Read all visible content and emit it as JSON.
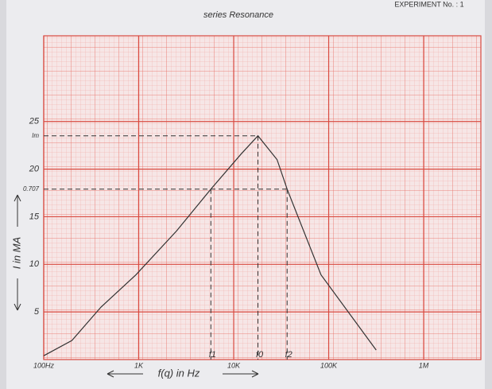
{
  "header": "EXPERIMENT No. : 1",
  "chart_data": {
    "type": "line",
    "title": "series Resonance",
    "x_label": "f(q) in Hz",
    "y_label": "I in MA",
    "x": [
      100,
      198,
      400,
      935,
      2500,
      5750,
      12000,
      18000,
      28600,
      36500,
      83000,
      316000
    ],
    "series": [
      {
        "name": "I",
        "color": "#333333",
        "values": [
          0.4,
          2,
          5.5,
          8.9,
          13.5,
          17.9,
          21.6,
          23.5,
          21,
          17.9,
          8.9,
          1
        ]
      }
    ],
    "log_x": true,
    "xlim": [
      100,
      4000000
    ],
    "xticks": [
      {
        "value": 100,
        "label": "100Hz"
      },
      {
        "value": 1000,
        "label": "1K"
      },
      {
        "value": 10000,
        "label": "10K"
      },
      {
        "value": 100000,
        "label": "100K"
      },
      {
        "value": 1000000,
        "label": "1M"
      }
    ],
    "ylim": [
      0,
      34
    ],
    "yticks": [
      5,
      10,
      15,
      20,
      25
    ],
    "reference_levels": [
      {
        "label": "Im",
        "y": 23.5,
        "x_end": 18000
      },
      {
        "label": "0.707",
        "y": 17.9,
        "x_end": 36500
      }
    ],
    "frequency_markers": [
      {
        "label": "f1",
        "x": 5750,
        "y_top": 17.9
      },
      {
        "label": "f0",
        "x": 18000,
        "y_top": 23.5
      },
      {
        "label": "f2",
        "x": 36500,
        "y_top": 17.9
      }
    ],
    "grid": true
  }
}
